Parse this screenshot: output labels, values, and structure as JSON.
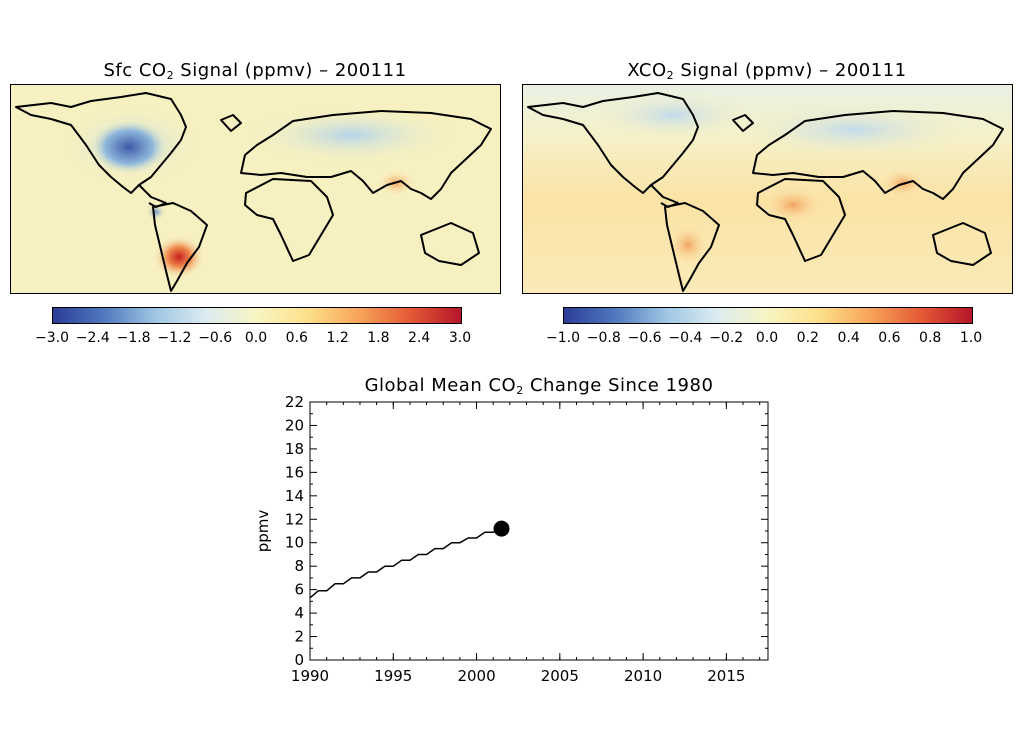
{
  "left_panel": {
    "title_prefix": "Sfc CO",
    "title_sub": "2",
    "title_suffix": " Signal (ppmv) – 200111",
    "colorbar_ticks": [
      "−3.0",
      "−2.4",
      "−1.8",
      "−1.2",
      "−0.6",
      "0.0",
      "0.6",
      "1.2",
      "1.8",
      "2.4",
      "3.0"
    ],
    "range": [
      -3.0,
      3.0
    ]
  },
  "right_panel": {
    "title_prefix": "XCO",
    "title_sub": "2",
    "title_suffix": " Signal (ppmv) – 200111",
    "colorbar_ticks": [
      "−1.0",
      "−0.8",
      "−0.6",
      "−0.4",
      "−0.2",
      "0.0",
      "0.2",
      "0.4",
      "0.6",
      "0.8",
      "1.0"
    ],
    "range": [
      -1.0,
      1.0
    ]
  },
  "colormap": [
    "#2b3d97",
    "#4f78be",
    "#9ec6e3",
    "#dcecf1",
    "#f8f5c3",
    "#fde08a",
    "#f7a45a",
    "#e45a35",
    "#b5152a"
  ],
  "chart_data": {
    "type": "line",
    "title_prefix": "Global Mean CO",
    "title_sub": "2",
    "title_suffix": " Change Since 1980",
    "ylabel": "ppmv",
    "xlabel": "",
    "xlim": [
      1990,
      2017.5
    ],
    "ylim": [
      0,
      22
    ],
    "xticks": [
      1990,
      1995,
      2000,
      2005,
      2010,
      2015
    ],
    "yticks": [
      0,
      2,
      4,
      6,
      8,
      10,
      12,
      14,
      16,
      18,
      20,
      22
    ],
    "series": [
      {
        "x": [
          1990.0,
          1990.5,
          1991.0,
          1991.5,
          1992.0,
          1992.5,
          1993.0,
          1993.5,
          1994.0,
          1994.5,
          1995.0,
          1995.5,
          1996.0,
          1996.5,
          1997.0,
          1997.5,
          1998.0,
          1998.5,
          1999.0,
          1999.5,
          2000.0,
          2000.5,
          2001.0,
          2001.5
        ],
        "y": [
          5.3,
          5.9,
          5.9,
          6.5,
          6.5,
          7.0,
          7.0,
          7.5,
          7.5,
          8.0,
          8.0,
          8.5,
          8.5,
          9.0,
          9.0,
          9.5,
          9.5,
          10.0,
          10.0,
          10.4,
          10.4,
          10.9,
          10.9,
          11.2
        ]
      }
    ],
    "marker": {
      "x": 2001.5,
      "y": 11.2
    }
  }
}
